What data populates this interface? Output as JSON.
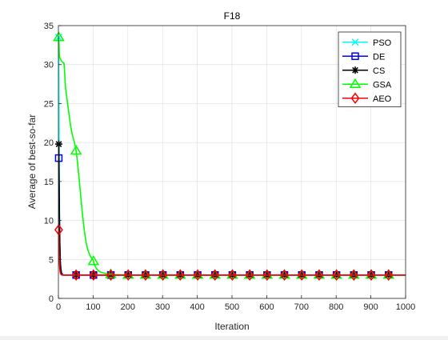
{
  "chart_data": {
    "type": "line",
    "title": "F18",
    "xlabel": "Iteration",
    "ylabel": "Average of best-so-far",
    "xlim": [
      0,
      1000
    ],
    "ylim": [
      0,
      35
    ],
    "xticks": [
      0,
      100,
      200,
      300,
      400,
      500,
      600,
      700,
      800,
      900,
      1000
    ],
    "yticks": [
      0,
      5,
      10,
      15,
      20,
      25,
      30,
      35
    ],
    "grid": true,
    "legend_position": "top-right",
    "series": [
      {
        "name": "PSO",
        "color": "#00ffff",
        "marker": "x",
        "x": [
          1,
          2,
          3,
          4,
          5,
          6,
          8,
          10,
          15,
          20,
          1000
        ],
        "y": [
          33.5,
          20,
          12,
          8,
          6,
          4.5,
          3.5,
          3.1,
          3.0,
          3.0,
          3.0
        ]
      },
      {
        "name": "DE",
        "color": "#0000ff",
        "marker": "square",
        "x": [
          1,
          2,
          3,
          4,
          5,
          7,
          9,
          12,
          15,
          1000
        ],
        "y": [
          18,
          14,
          10,
          7,
          5,
          3.8,
          3.3,
          3.05,
          3.0,
          3.0
        ]
      },
      {
        "name": "CS",
        "color": "#000000",
        "marker": "asterisk",
        "x": [
          1,
          2,
          3,
          4,
          5,
          6,
          8,
          10,
          12,
          1000
        ],
        "y": [
          19.8,
          15,
          10,
          7,
          5,
          4,
          3.3,
          3.05,
          3.0,
          3.0
        ]
      },
      {
        "name": "GSA",
        "color": "#00ff00",
        "marker": "triangle",
        "x": [
          1,
          3,
          5,
          8,
          12,
          16,
          18,
          20,
          22,
          25,
          30,
          35,
          40,
          45,
          50,
          55,
          60,
          65,
          70,
          75,
          80,
          85,
          90,
          95,
          100,
          105,
          110,
          115,
          120,
          130,
          140,
          150,
          160,
          180,
          200,
          1000
        ],
        "y": [
          33.5,
          31,
          30.8,
          30.5,
          30.3,
          30.2,
          29,
          27.3,
          26.5,
          25.5,
          23.8,
          22.2,
          21,
          20.2,
          19.3,
          17.5,
          15.2,
          12.8,
          10.5,
          8.6,
          7.1,
          6.2,
          5.6,
          5.2,
          4.9,
          4.2,
          3.8,
          3.55,
          3.4,
          3.25,
          3.15,
          3.1,
          3.05,
          3.02,
          3.0,
          3.0
        ]
      },
      {
        "name": "AEO",
        "color": "#ff0000",
        "marker": "diamond",
        "x": [
          1,
          2,
          3,
          4,
          5,
          6,
          8,
          10,
          1000
        ],
        "y": [
          8.8,
          6,
          4.5,
          3.8,
          3.4,
          3.2,
          3.05,
          3.0,
          3.0
        ]
      }
    ],
    "marker_x": [
      1,
      51,
      101,
      151,
      201,
      251,
      301,
      351,
      401,
      451,
      501,
      551,
      601,
      651,
      701,
      751,
      801,
      851,
      901,
      951
    ]
  }
}
